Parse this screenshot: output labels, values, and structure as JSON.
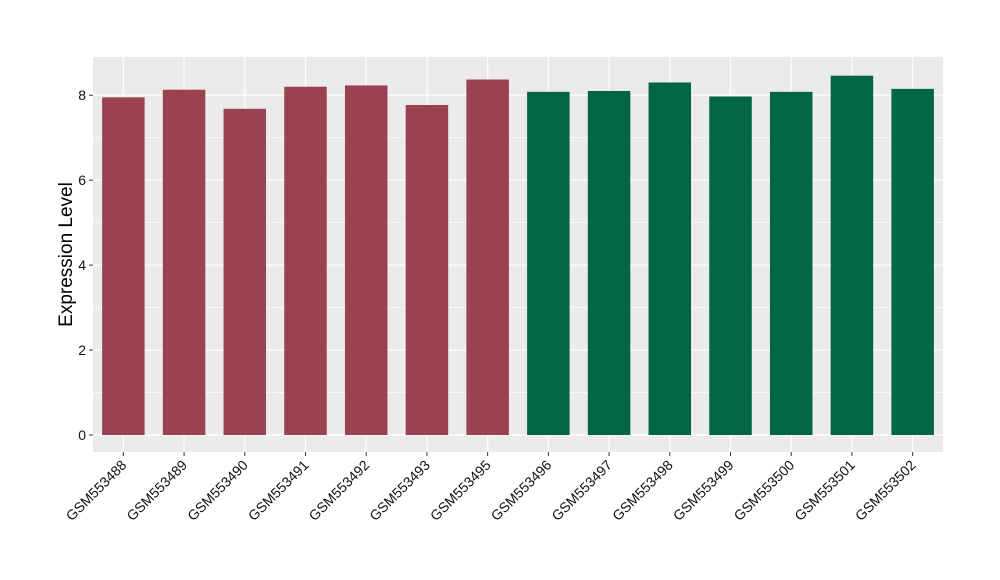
{
  "chart_data": {
    "type": "bar",
    "title": "",
    "xlabel": "",
    "ylabel": "Expression Level",
    "ylim": [
      -0.4,
      8.9
    ],
    "yticks": [
      0,
      2,
      4,
      6,
      8
    ],
    "grid": true,
    "legend": "none",
    "categories": [
      "GSM553488",
      "GSM553489",
      "GSM553490",
      "GSM553491",
      "GSM553492",
      "GSM553493",
      "GSM553495",
      "GSM553496",
      "GSM553497",
      "GSM553498",
      "GSM553499",
      "GSM553500",
      "GSM553501",
      "GSM553502"
    ],
    "values": [
      7.95,
      8.13,
      7.68,
      8.2,
      8.23,
      7.77,
      8.37,
      8.08,
      8.1,
      8.3,
      7.97,
      8.08,
      8.46,
      8.15
    ],
    "bar_colors": [
      "#9B4250",
      "#9B4250",
      "#9B4250",
      "#9B4250",
      "#9B4250",
      "#9B4250",
      "#9B4250",
      "#006644",
      "#006644",
      "#006644",
      "#006644",
      "#006644",
      "#006644",
      "#006644"
    ],
    "panel_background": "#EBEBEB",
    "grid_color": "#FFFFFF"
  }
}
